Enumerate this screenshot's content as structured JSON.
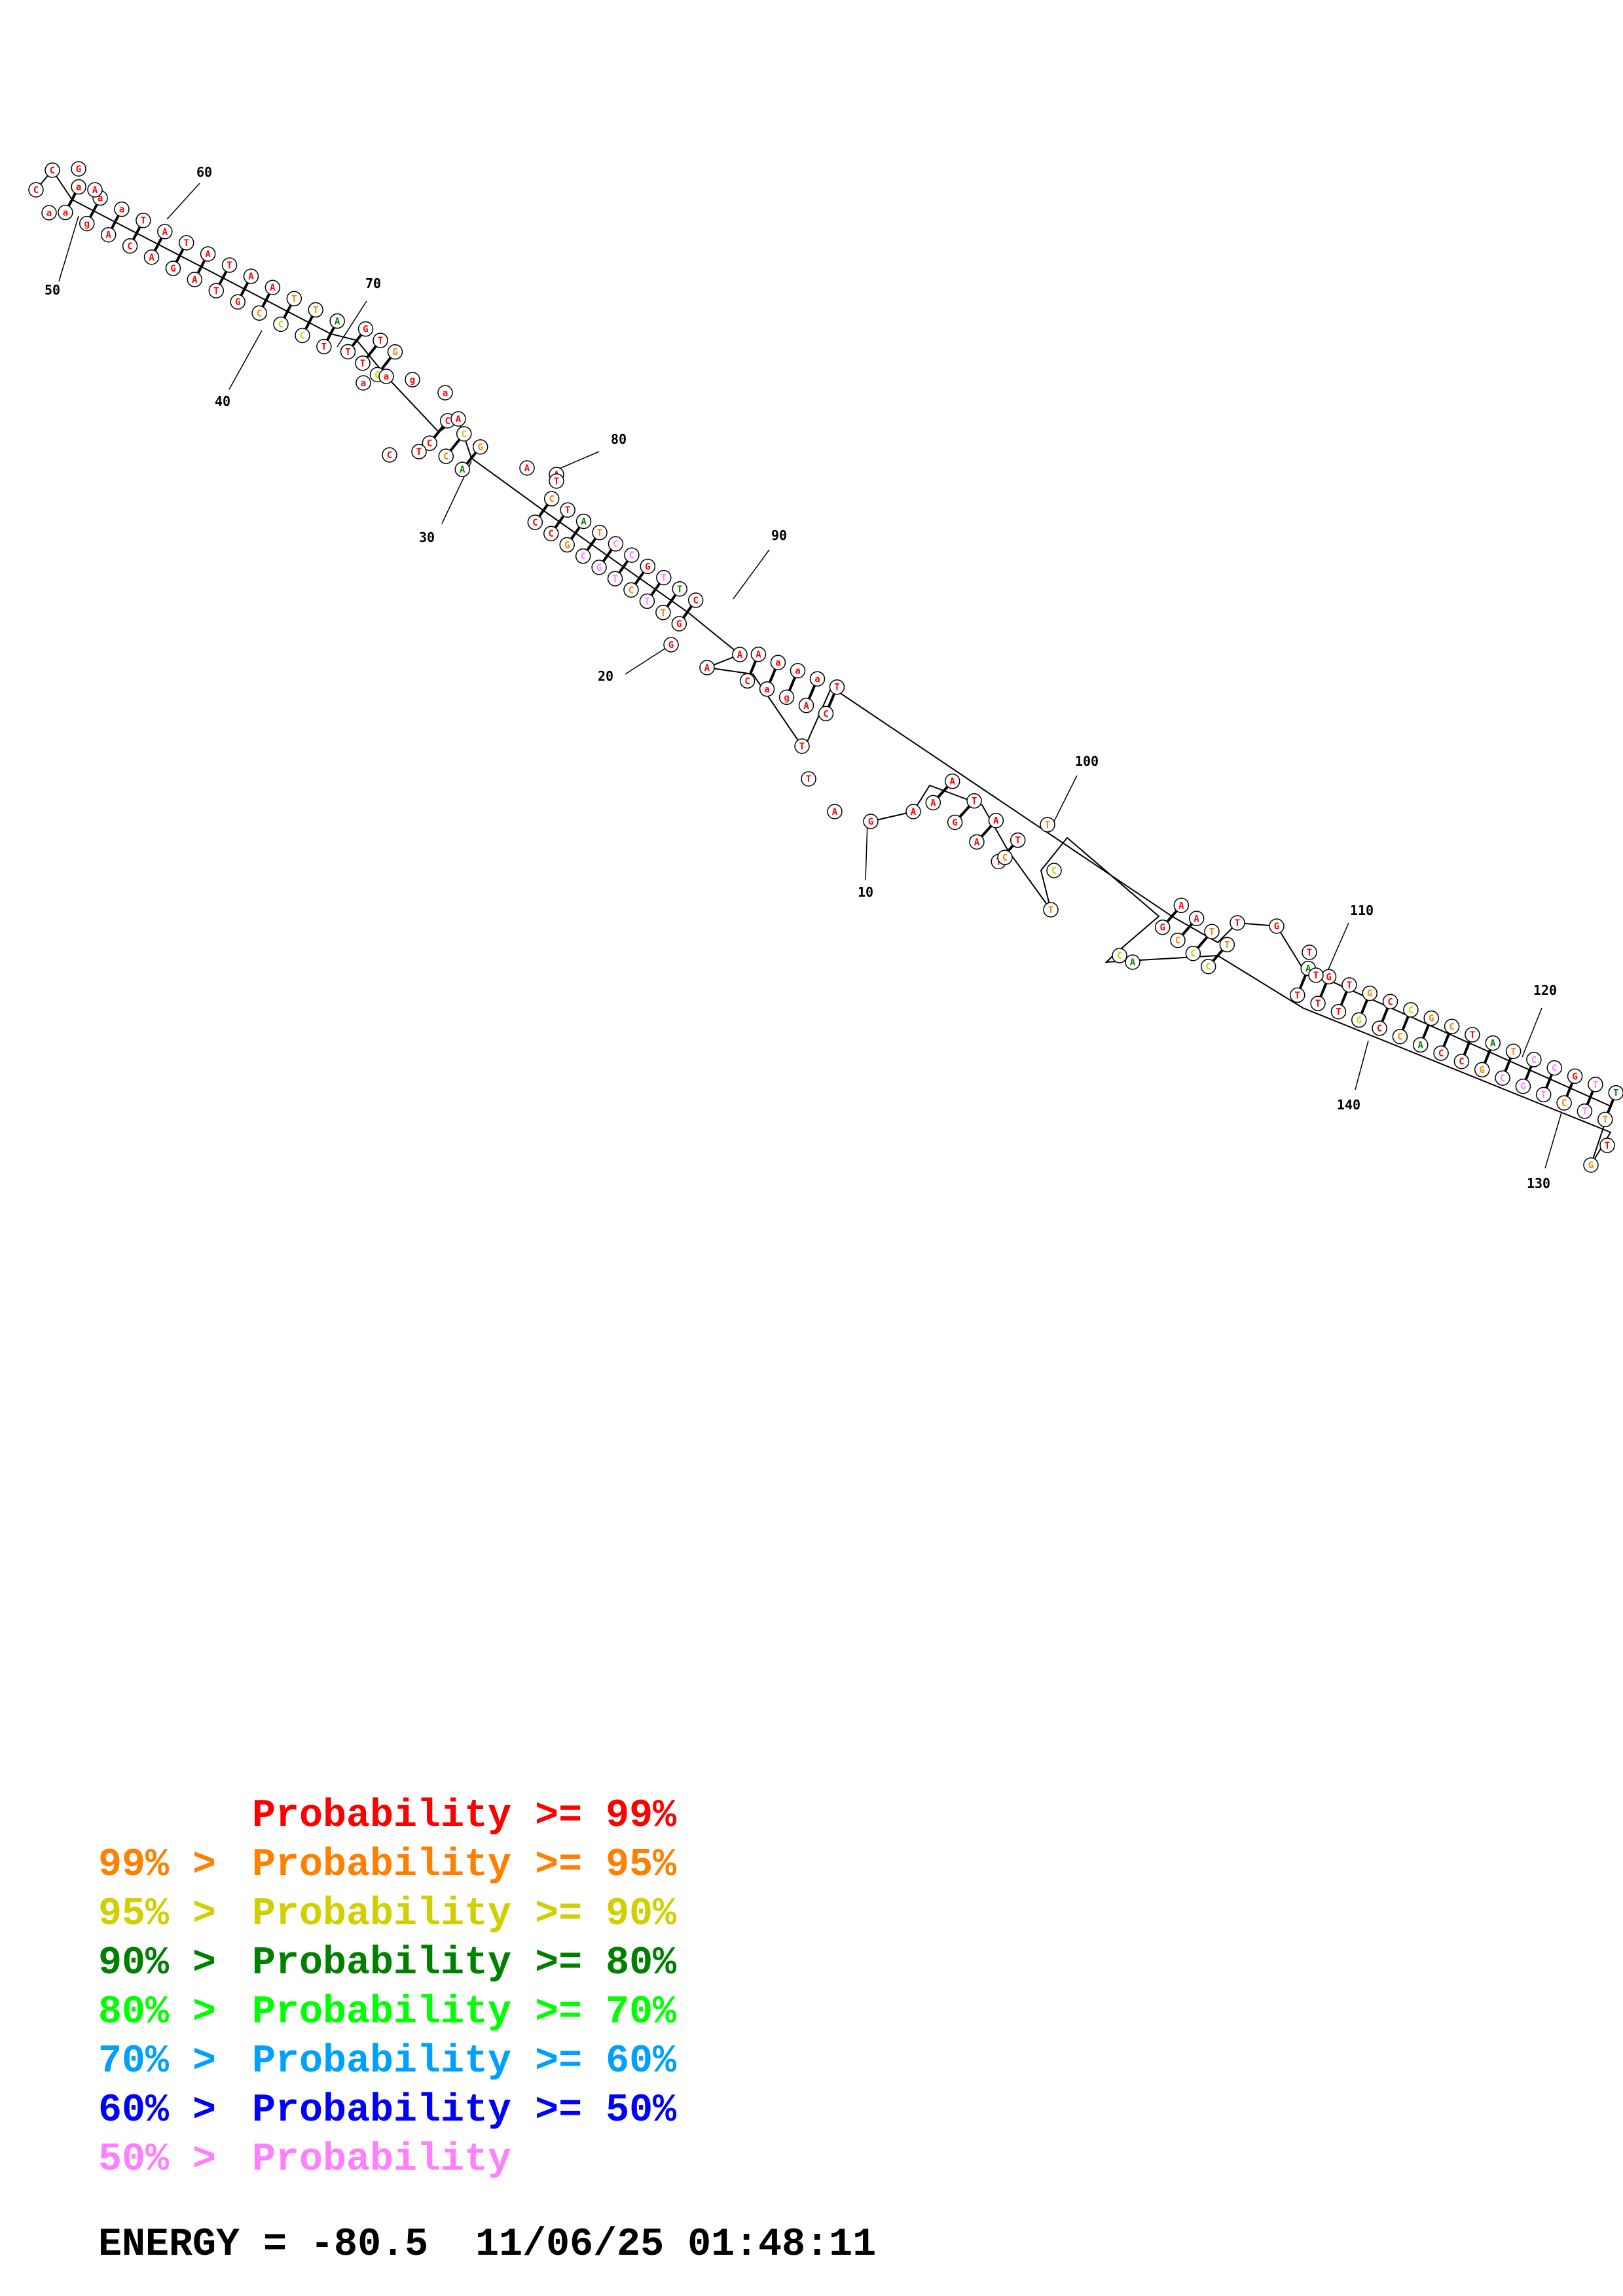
{
  "legend": [
    {
      "prefix": "",
      "label": "Probability >= 99%",
      "color": "#ff0000"
    },
    {
      "prefix": "99% >",
      "label": "Probability >= 95%",
      "color": "#ff8000"
    },
    {
      "prefix": "95% >",
      "label": "Probability >= 90%",
      "color": "#d0d000"
    },
    {
      "prefix": "90% >",
      "label": "Probability >= 80%",
      "color": "#008000"
    },
    {
      "prefix": "80% >",
      "label": "Probability >= 70%",
      "color": "#00ff00"
    },
    {
      "prefix": "70% >",
      "label": "Probability >= 60%",
      "color": "#00a0ff"
    },
    {
      "prefix": "60% >",
      "label": "Probability >= 50%",
      "color": "#0000ff"
    },
    {
      "prefix": "50% >",
      "label": "Probability",
      "color": "#ff80ff"
    }
  ],
  "footer": {
    "energy_label": "ENERGY = -80.5  11/06/25 01:48:11"
  },
  "structure": {
    "position_labels": [
      "10",
      "20",
      "30",
      "40",
      "50",
      "60",
      "70",
      "80",
      "90",
      "100",
      "110",
      "120",
      "130",
      "140"
    ],
    "bases": [
      {
        "t": "a",
        "c": "red"
      },
      {
        "t": "a",
        "c": "red"
      },
      {
        "t": "a",
        "c": "red"
      },
      {
        "t": "g",
        "c": "red"
      },
      {
        "t": "a",
        "c": "red"
      },
      {
        "t": "A",
        "c": "red"
      },
      {
        "t": "T",
        "c": "red"
      },
      {
        "t": "C",
        "c": "red"
      },
      {
        "t": "A",
        "c": "red"
      },
      {
        "t": "A",
        "c": "red"
      },
      {
        "t": "T",
        "c": "red"
      },
      {
        "t": "G",
        "c": "red"
      },
      {
        "t": "A",
        "c": "red"
      },
      {
        "t": "A",
        "c": "red"
      },
      {
        "t": "T",
        "c": "red"
      },
      {
        "t": "T",
        "c": "red"
      },
      {
        "t": "A",
        "c": "red"
      },
      {
        "t": "G",
        "c": "red"
      },
      {
        "t": "A",
        "c": "red"
      },
      {
        "t": "C",
        "c": "orange"
      },
      {
        "t": "T",
        "c": "orange"
      },
      {
        "t": "C",
        "c": "yellow"
      },
      {
        "t": "T",
        "c": "orange"
      },
      {
        "t": "C",
        "c": "yellow"
      },
      {
        "t": "A",
        "c": "green"
      },
      {
        "t": "T",
        "c": "red"
      },
      {
        "t": "G",
        "c": "red"
      },
      {
        "t": "T",
        "c": "red"
      },
      {
        "t": "T",
        "c": "red"
      },
      {
        "t": "T",
        "c": "red"
      },
      {
        "t": "G",
        "c": "orange"
      },
      {
        "t": "G",
        "c": "yellow"
      },
      {
        "t": "C",
        "c": "red"
      },
      {
        "t": "C",
        "c": "red"
      },
      {
        "t": "C",
        "c": "yellow"
      },
      {
        "t": "C",
        "c": "orange"
      },
      {
        "t": "G",
        "c": "orange"
      },
      {
        "t": "A",
        "c": "green"
      },
      {
        "t": "C",
        "c": "orange"
      },
      {
        "t": "C",
        "c": "red"
      },
      {
        "t": "T",
        "c": "red"
      },
      {
        "t": "C",
        "c": "red"
      },
      {
        "t": "A",
        "c": "green"
      },
      {
        "t": "G",
        "c": "orange"
      },
      {
        "t": "T",
        "c": "orange"
      },
      {
        "t": "C",
        "c": "pink"
      },
      {
        "t": "C",
        "c": "pink"
      },
      {
        "t": "G",
        "c": "pink"
      },
      {
        "t": "C",
        "c": "pink"
      },
      {
        "t": "T",
        "c": "pink"
      },
      {
        "t": "G",
        "c": "red"
      },
      {
        "t": "C",
        "c": "orange"
      },
      {
        "t": "T",
        "c": "pink"
      },
      {
        "t": "T",
        "c": "pink"
      },
      {
        "t": "T",
        "c": "green"
      },
      {
        "t": "T",
        "c": "orange"
      },
      {
        "t": "C",
        "c": "red"
      },
      {
        "t": "G",
        "c": "red"
      },
      {
        "t": "A",
        "c": "red"
      },
      {
        "t": "C",
        "c": "red"
      }
    ],
    "colors": {
      "red": "#ff0000",
      "orange": "#ff8000",
      "yellow": "#d0d000",
      "green": "#008000",
      "pink": "#ff80ff"
    }
  }
}
